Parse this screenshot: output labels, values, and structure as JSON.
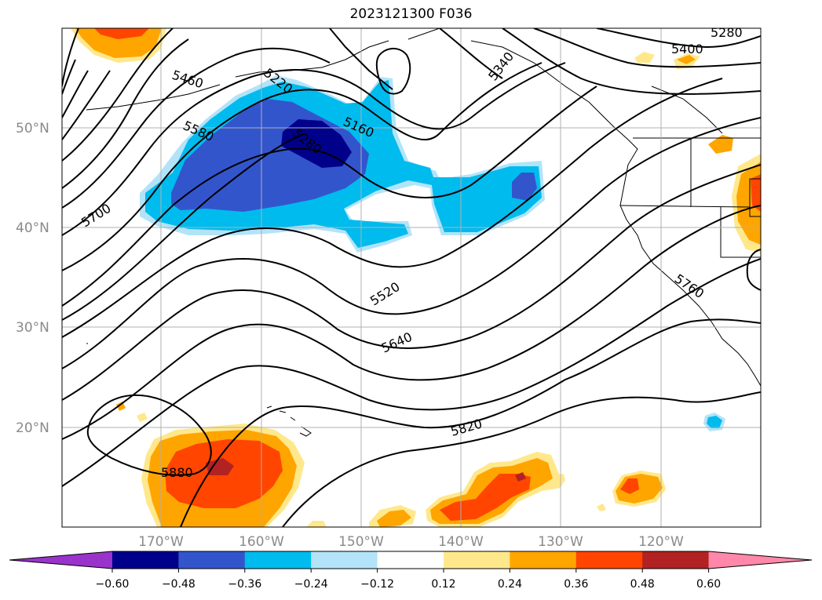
{
  "title": "2023121300 F036",
  "latitude_labels": [
    "50°N",
    "40°N",
    "30°N",
    "20°N"
  ],
  "longitude_labels": [
    "170°W",
    "160°W",
    "150°W",
    "140°W",
    "130°W",
    "120°W"
  ],
  "contour_labels": [
    "5280",
    "5400",
    "5340",
    "5460",
    "5220",
    "5280",
    "5160",
    "5580",
    "5700",
    "5520",
    "5640",
    "5760",
    "5820",
    "5880"
  ],
  "colorbar": {
    "ticks": [
      "−0.60",
      "−0.48",
      "−0.36",
      "−0.24",
      "−0.12",
      "0.12",
      "0.24",
      "0.36",
      "0.48",
      "0.60"
    ],
    "colors": [
      "#9933cc",
      "#00008b",
      "#3355cc",
      "#00bbee",
      "#b3e3f8",
      "#ffffff",
      "#ffe88c",
      "#ffa500",
      "#ff4500",
      "#b22222",
      "#ff88aa"
    ]
  }
}
